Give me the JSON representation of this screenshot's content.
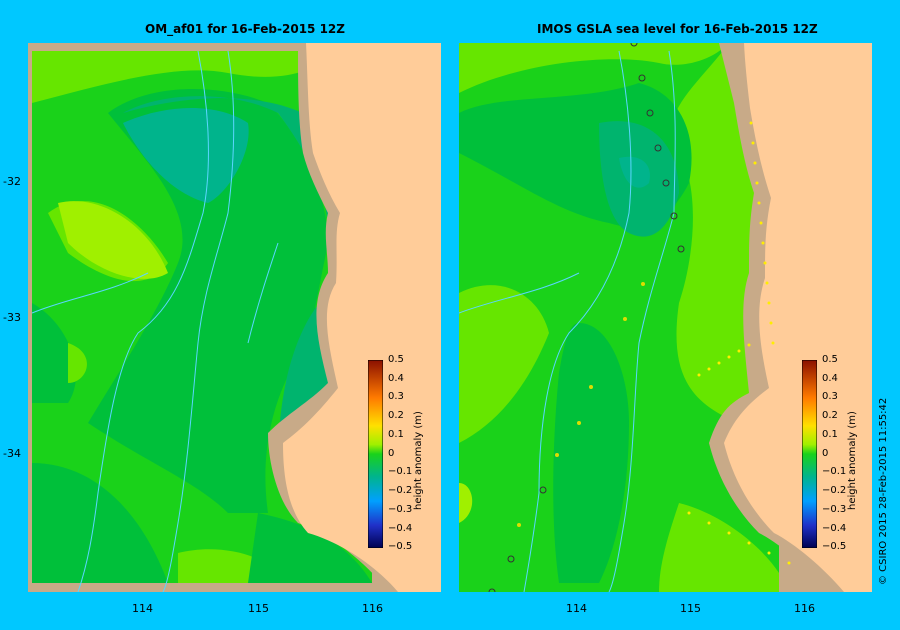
{
  "panels": [
    {
      "title": "OM_af01  for 16-Feb-2015 12Z",
      "y_ticks": [
        "-32",
        "-33",
        "-34"
      ],
      "x_ticks": [
        "114",
        "115",
        "116"
      ]
    },
    {
      "title": "IMOS GSLA sea level  for 16-Feb-2015 12Z",
      "x_ticks": [
        "114",
        "115",
        "116"
      ]
    }
  ],
  "colorbar": {
    "labels": [
      "0.5",
      "0.4",
      "0.3",
      "0.2",
      "0.1",
      "0",
      "−0.1",
      "−0.2",
      "−0.3",
      "−0.4",
      "−0.5"
    ],
    "title": "height anomaly (m)"
  },
  "credit": "© CSIRO 2015   28-Feb-2015 11:55:42",
  "colors": {
    "background": "#00c8ff",
    "land": "#ffcc99",
    "shelf": "#c8aa88",
    "level_m01": "#00b46e",
    "level_m005": "#00c03a",
    "level_0": "#1ad21a",
    "level_p005": "#66e600",
    "level_p01": "#a0f000",
    "bathymetry": "#5ad6ff"
  }
}
